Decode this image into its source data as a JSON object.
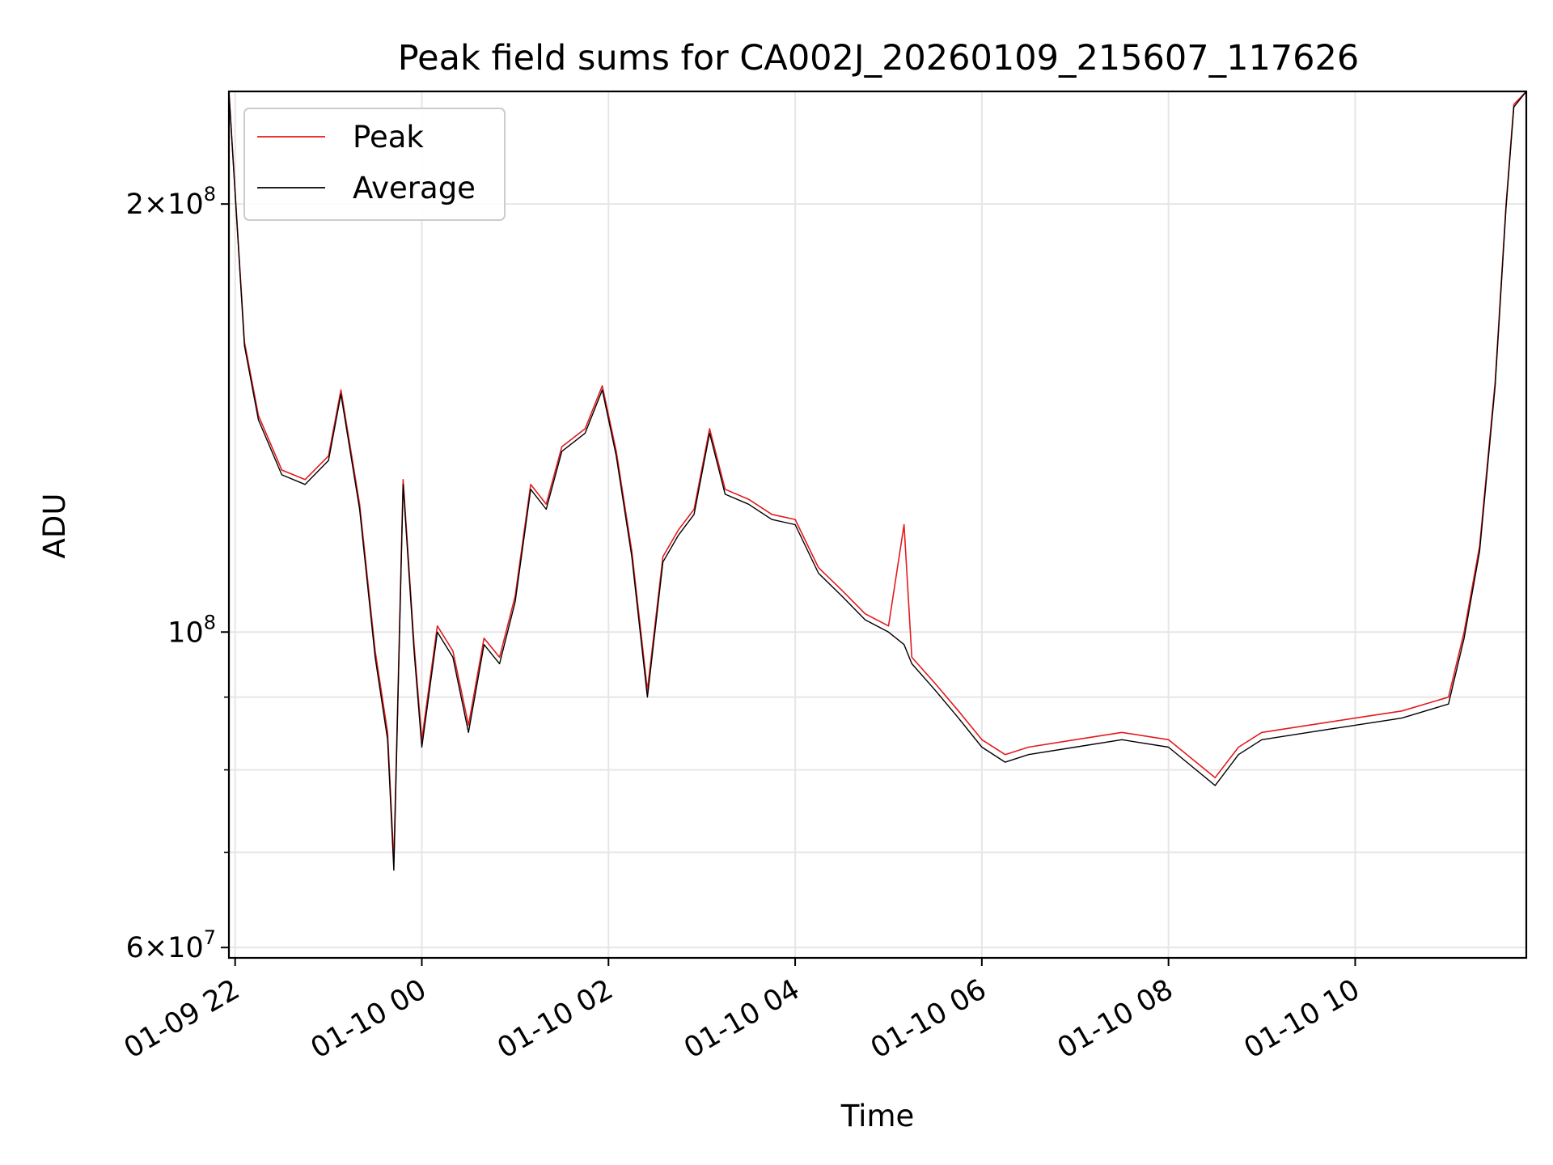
{
  "chart_data": {
    "type": "line",
    "title": "Peak field sums for CA002J_20260109_215607_117626",
    "xlabel": "Time",
    "ylabel": "ADU",
    "y_scale": "log",
    "ylim": [
      59000000,
      240000000
    ],
    "xlim": [
      "2026-01-09 21:56",
      "2026-01-10 11:50"
    ],
    "grid": true,
    "legend_position": "top-left",
    "x_ticks": [
      {
        "t": "2026-01-09 22:00",
        "label": "01-09 22"
      },
      {
        "t": "2026-01-10 00:00",
        "label": "01-10 00"
      },
      {
        "t": "2026-01-10 02:00",
        "label": "01-10 02"
      },
      {
        "t": "2026-01-10 04:00",
        "label": "01-10 04"
      },
      {
        "t": "2026-01-10 06:00",
        "label": "01-10 06"
      },
      {
        "t": "2026-01-10 08:00",
        "label": "01-10 08"
      },
      {
        "t": "2026-01-10 10:00",
        "label": "01-10 10"
      }
    ],
    "y_major_ticks": [
      {
        "value": 60000000,
        "base": "6",
        "exp": "7"
      },
      {
        "value": 100000000,
        "base": "",
        "exp": "8"
      },
      {
        "value": 200000000,
        "base": "2",
        "exp": "8"
      }
    ],
    "y_minor_ticks": [
      70000000,
      80000000,
      90000000
    ],
    "colors": {
      "Peak": "#e41a1c",
      "Average": "#000000"
    },
    "series": [
      {
        "name": "Peak",
        "color": "#e41a1c",
        "points": [
          [
            "2026-01-09 21:56",
            240000000
          ],
          [
            "2026-01-09 22:06",
            160000000
          ],
          [
            "2026-01-09 22:15",
            142000000
          ],
          [
            "2026-01-09 22:30",
            130000000
          ],
          [
            "2026-01-09 22:45",
            128000000
          ],
          [
            "2026-01-09 23:00",
            133000000
          ],
          [
            "2026-01-09 23:08",
            148000000
          ],
          [
            "2026-01-09 23:20",
            123000000
          ],
          [
            "2026-01-09 23:30",
            97000000
          ],
          [
            "2026-01-09 23:38",
            85000000
          ],
          [
            "2026-01-09 23:42",
            69000000
          ],
          [
            "2026-01-09 23:48",
            128000000
          ],
          [
            "2026-01-09 23:55",
            98000000
          ],
          [
            "2026-01-10 00:00",
            84000000
          ],
          [
            "2026-01-10 00:10",
            101000000
          ],
          [
            "2026-01-10 00:20",
            97000000
          ],
          [
            "2026-01-10 00:30",
            86000000
          ],
          [
            "2026-01-10 00:40",
            99000000
          ],
          [
            "2026-01-10 00:50",
            96000000
          ],
          [
            "2026-01-10 01:00",
            106000000
          ],
          [
            "2026-01-10 01:10",
            127000000
          ],
          [
            "2026-01-10 01:20",
            123000000
          ],
          [
            "2026-01-10 01:30",
            135000000
          ],
          [
            "2026-01-10 01:45",
            139000000
          ],
          [
            "2026-01-10 01:56",
            149000000
          ],
          [
            "2026-01-10 02:05",
            134000000
          ],
          [
            "2026-01-10 02:15",
            114000000
          ],
          [
            "2026-01-10 02:25",
            91000000
          ],
          [
            "2026-01-10 02:35",
            113000000
          ],
          [
            "2026-01-10 02:45",
            118000000
          ],
          [
            "2026-01-10 02:55",
            122000000
          ],
          [
            "2026-01-10 03:05",
            139000000
          ],
          [
            "2026-01-10 03:15",
            126000000
          ],
          [
            "2026-01-10 03:30",
            124000000
          ],
          [
            "2026-01-10 03:45",
            121000000
          ],
          [
            "2026-01-10 04:00",
            120000000
          ],
          [
            "2026-01-10 04:15",
            111000000
          ],
          [
            "2026-01-10 04:30",
            107000000
          ],
          [
            "2026-01-10 04:45",
            103000000
          ],
          [
            "2026-01-10 05:00",
            101000000
          ],
          [
            "2026-01-10 05:10",
            119000000
          ],
          [
            "2026-01-10 05:15",
            96000000
          ],
          [
            "2026-01-10 05:30",
            92000000
          ],
          [
            "2026-01-10 05:45",
            88000000
          ],
          [
            "2026-01-10 06:00",
            84000000
          ],
          [
            "2026-01-10 06:15",
            82000000
          ],
          [
            "2026-01-10 06:30",
            83000000
          ],
          [
            "2026-01-10 07:00",
            84000000
          ],
          [
            "2026-01-10 07:30",
            85000000
          ],
          [
            "2026-01-10 08:00",
            84000000
          ],
          [
            "2026-01-10 08:30",
            79000000
          ],
          [
            "2026-01-10 08:45",
            83000000
          ],
          [
            "2026-01-10 09:00",
            85000000
          ],
          [
            "2026-01-10 09:30",
            86000000
          ],
          [
            "2026-01-10 10:00",
            87000000
          ],
          [
            "2026-01-10 10:30",
            88000000
          ],
          [
            "2026-01-10 11:00",
            90000000
          ],
          [
            "2026-01-10 11:10",
            100000000
          ],
          [
            "2026-01-10 11:20",
            115000000
          ],
          [
            "2026-01-10 11:30",
            150000000
          ],
          [
            "2026-01-10 11:37",
            200000000
          ],
          [
            "2026-01-10 11:42",
            235000000
          ],
          [
            "2026-01-10 11:50",
            240000000
          ]
        ]
      },
      {
        "name": "Average",
        "color": "#000000",
        "points": [
          [
            "2026-01-09 21:56",
            240000000
          ],
          [
            "2026-01-09 22:06",
            159000000
          ],
          [
            "2026-01-09 22:15",
            141000000
          ],
          [
            "2026-01-09 22:30",
            129000000
          ],
          [
            "2026-01-09 22:45",
            127000000
          ],
          [
            "2026-01-09 23:00",
            132000000
          ],
          [
            "2026-01-09 23:08",
            147000000
          ],
          [
            "2026-01-09 23:20",
            122000000
          ],
          [
            "2026-01-09 23:30",
            96000000
          ],
          [
            "2026-01-09 23:38",
            84000000
          ],
          [
            "2026-01-09 23:42",
            68000000
          ],
          [
            "2026-01-09 23:48",
            127000000
          ],
          [
            "2026-01-09 23:55",
            97000000
          ],
          [
            "2026-01-10 00:00",
            83000000
          ],
          [
            "2026-01-10 00:10",
            100000000
          ],
          [
            "2026-01-10 00:20",
            96000000
          ],
          [
            "2026-01-10 00:30",
            85000000
          ],
          [
            "2026-01-10 00:40",
            98000000
          ],
          [
            "2026-01-10 00:50",
            95000000
          ],
          [
            "2026-01-10 01:00",
            105000000
          ],
          [
            "2026-01-10 01:10",
            126000000
          ],
          [
            "2026-01-10 01:20",
            122000000
          ],
          [
            "2026-01-10 01:30",
            134000000
          ],
          [
            "2026-01-10 01:45",
            138000000
          ],
          [
            "2026-01-10 01:56",
            148000000
          ],
          [
            "2026-01-10 02:05",
            133000000
          ],
          [
            "2026-01-10 02:15",
            113000000
          ],
          [
            "2026-01-10 02:25",
            90000000
          ],
          [
            "2026-01-10 02:35",
            112000000
          ],
          [
            "2026-01-10 02:45",
            117000000
          ],
          [
            "2026-01-10 02:55",
            121000000
          ],
          [
            "2026-01-10 03:05",
            138000000
          ],
          [
            "2026-01-10 03:15",
            125000000
          ],
          [
            "2026-01-10 03:30",
            123000000
          ],
          [
            "2026-01-10 03:45",
            120000000
          ],
          [
            "2026-01-10 04:00",
            119000000
          ],
          [
            "2026-01-10 04:15",
            110000000
          ],
          [
            "2026-01-10 04:30",
            106000000
          ],
          [
            "2026-01-10 04:45",
            102000000
          ],
          [
            "2026-01-10 05:00",
            100000000
          ],
          [
            "2026-01-10 05:10",
            98000000
          ],
          [
            "2026-01-10 05:15",
            95000000
          ],
          [
            "2026-01-10 05:30",
            91000000
          ],
          [
            "2026-01-10 05:45",
            87000000
          ],
          [
            "2026-01-10 06:00",
            83000000
          ],
          [
            "2026-01-10 06:15",
            81000000
          ],
          [
            "2026-01-10 06:30",
            82000000
          ],
          [
            "2026-01-10 07:00",
            83000000
          ],
          [
            "2026-01-10 07:30",
            84000000
          ],
          [
            "2026-01-10 08:00",
            83000000
          ],
          [
            "2026-01-10 08:30",
            78000000
          ],
          [
            "2026-01-10 08:45",
            82000000
          ],
          [
            "2026-01-10 09:00",
            84000000
          ],
          [
            "2026-01-10 09:30",
            85000000
          ],
          [
            "2026-01-10 10:00",
            86000000
          ],
          [
            "2026-01-10 10:30",
            87000000
          ],
          [
            "2026-01-10 11:00",
            89000000
          ],
          [
            "2026-01-10 11:10",
            99000000
          ],
          [
            "2026-01-10 11:20",
            114000000
          ],
          [
            "2026-01-10 11:30",
            149000000
          ],
          [
            "2026-01-10 11:37",
            199000000
          ],
          [
            "2026-01-10 11:42",
            234000000
          ],
          [
            "2026-01-10 11:50",
            240000000
          ]
        ]
      }
    ]
  }
}
